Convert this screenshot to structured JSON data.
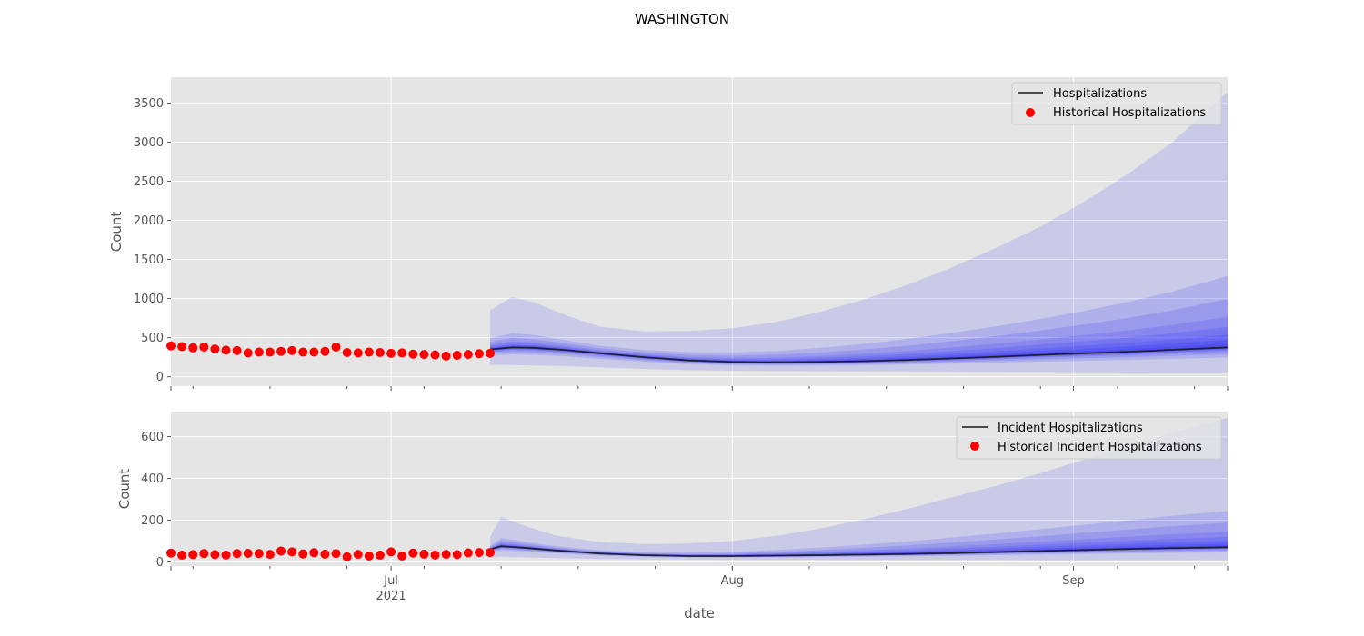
{
  "title": "WASHINGTON",
  "colors": {
    "background": "#e5e5e5",
    "grid": "#ffffff",
    "band": "#0000ff",
    "median": "#1f1f3a",
    "historical": "#ff0000"
  },
  "chart_data": [
    {
      "type": "line",
      "panel": "top",
      "ylabel": "Count",
      "xlabel": "",
      "x_range": [
        "2021-06-11",
        "2021-09-15"
      ],
      "ylim": [
        -120,
        3830
      ],
      "yticks": [
        0,
        500,
        1000,
        1500,
        2000,
        2500,
        3000,
        3500
      ],
      "grid": true,
      "legend_position": "top-right",
      "legend": [
        {
          "label": "Hospitalizations",
          "kind": "line"
        },
        {
          "label": "Historical Hospitalizations",
          "kind": "marker"
        }
      ],
      "historical": {
        "name": "Historical Hospitalizations",
        "start": "2021-06-11",
        "values": [
          395,
          385,
          370,
          380,
          355,
          340,
          335,
          305,
          315,
          315,
          325,
          335,
          315,
          315,
          325,
          380,
          310,
          305,
          315,
          310,
          300,
          305,
          290,
          285,
          280,
          265,
          275,
          285,
          295,
          300
        ]
      },
      "forecast": {
        "name": "Hospitalizations",
        "x": [
          "2021-07-10",
          "2021-07-12",
          "2021-07-14",
          "2021-07-17",
          "2021-07-20",
          "2021-07-24",
          "2021-07-28",
          "2021-08-01",
          "2021-08-05",
          "2021-08-09",
          "2021-08-13",
          "2021-08-17",
          "2021-08-21",
          "2021-08-25",
          "2021-08-29",
          "2021-09-02",
          "2021-09-06",
          "2021-09-10",
          "2021-09-15"
        ],
        "median": [
          350,
          375,
          370,
          340,
          300,
          250,
          210,
          190,
          185,
          190,
          200,
          215,
          235,
          255,
          280,
          300,
          320,
          345,
          375
        ],
        "band_lower": [
          150,
          150,
          145,
          135,
          120,
          100,
          85,
          78,
          75,
          72,
          70,
          68,
          65,
          62,
          60,
          58,
          55,
          52,
          50
        ],
        "band_upper": [
          850,
          1020,
          950,
          780,
          640,
          580,
          585,
          620,
          700,
          830,
          990,
          1180,
          1400,
          1650,
          1920,
          2240,
          2600,
          3000,
          3640
        ],
        "fan_quantiles": [
          0.28,
          0.19,
          0.12,
          0.08,
          0.05,
          0.03,
          0.015
        ]
      }
    },
    {
      "type": "line",
      "panel": "bottom",
      "ylabel": "Count",
      "xlabel": "date",
      "x_range": [
        "2021-06-11",
        "2021-09-15"
      ],
      "ylim": [
        -20,
        720
      ],
      "yticks": [
        0,
        200,
        400,
        600
      ],
      "grid": true,
      "legend_position": "top-right",
      "legend": [
        {
          "label": "Incident Hospitalizations",
          "kind": "line"
        },
        {
          "label": "Historical Incident Hospitalizations",
          "kind": "marker"
        }
      ],
      "historical": {
        "name": "Historical Incident Hospitalizations",
        "start": "2021-06-11",
        "values": [
          42,
          32,
          35,
          40,
          35,
          33,
          40,
          41,
          40,
          36,
          52,
          48,
          38,
          44,
          37,
          40,
          24,
          36,
          28,
          32,
          48,
          28,
          42,
          37,
          33,
          36,
          35,
          43,
          45,
          45
        ]
      },
      "forecast": {
        "name": "Incident Hospitalizations",
        "x": [
          "2021-07-10",
          "2021-07-11",
          "2021-07-13",
          "2021-07-16",
          "2021-07-20",
          "2021-07-24",
          "2021-07-28",
          "2021-08-01",
          "2021-08-05",
          "2021-08-09",
          "2021-08-13",
          "2021-08-17",
          "2021-08-21",
          "2021-08-25",
          "2021-08-29",
          "2021-09-02",
          "2021-09-06",
          "2021-09-10",
          "2021-09-15"
        ],
        "median": [
          60,
          75,
          68,
          55,
          40,
          32,
          28,
          28,
          30,
          32,
          35,
          38,
          42,
          47,
          52,
          57,
          62,
          66,
          70
        ],
        "band_lower": [
          20,
          25,
          22,
          18,
          14,
          12,
          11,
          10,
          10,
          10,
          9,
          9,
          9,
          9,
          8,
          8,
          8,
          8,
          8
        ],
        "band_upper": [
          120,
          215,
          175,
          125,
          95,
          85,
          88,
          100,
          125,
          160,
          205,
          255,
          310,
          365,
          425,
          490,
          550,
          620,
          690
        ],
        "fan_quantiles": [
          0.28,
          0.19,
          0.12,
          0.08,
          0.05,
          0.03,
          0.015
        ]
      }
    }
  ],
  "xaxis": {
    "ticks": [
      {
        "date": "2021-07-01",
        "label": "Jul",
        "sublabel": "2021"
      },
      {
        "date": "2021-08-01",
        "label": "Aug",
        "sublabel": ""
      },
      {
        "date": "2021-09-01",
        "label": "Sep",
        "sublabel": ""
      }
    ]
  }
}
